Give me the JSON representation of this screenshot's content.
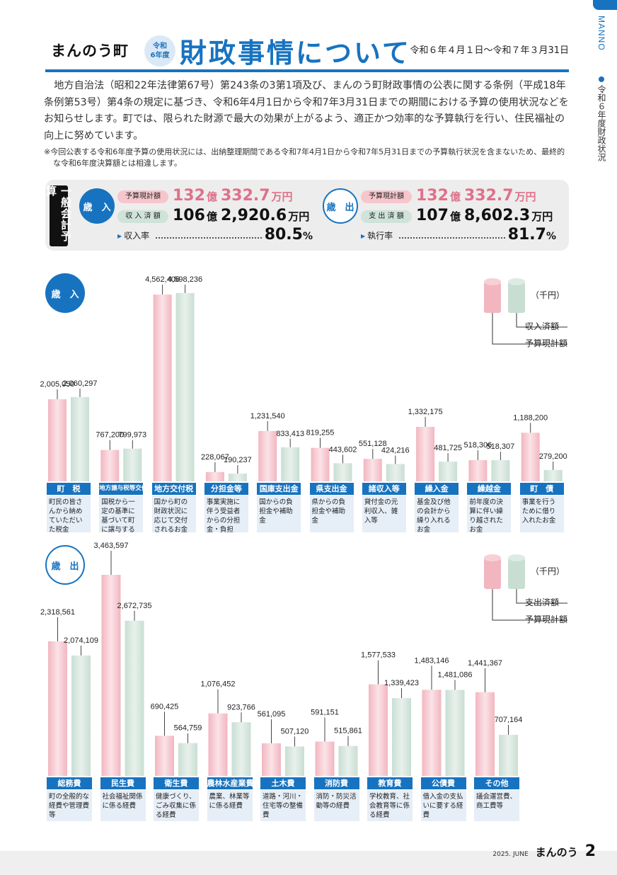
{
  "side_tab": {
    "brand": "MANNO",
    "section": "令和６年度財政状況"
  },
  "header": {
    "town": "まんのう町",
    "era_line1": "令和",
    "era_line2": "6年度",
    "title": "財政事情について",
    "period": "令和６年４月１日〜令和７年３月31日"
  },
  "intro": {
    "paragraph": "地方自治法（昭和22年法律第67号）第243条の3第1項及び、まんのう町財政事情の公表に関する条例（平成18年条例第53号）第4条の規定に基づき、令和6年4月1日から令和7年3月31日までの期間における予算の使用状況などをお知らせします。町では、限られた財源で最大の効果が上がるよう、適正かつ効率的な予算執行を行い、住民福祉の向上に努めています。",
    "note": "※今回公表する令和6年度予算の使用状況には、出納整理期間である令和7年4月1日から令和7年5月31日までの予算執行状況を含まないため、最終的な令和6年度決算額とは相違します。"
  },
  "summary": {
    "label": "一般会計予算",
    "revenue": {
      "label": "歳　入",
      "budget_label": "予算現計額",
      "budget_oku": "132",
      "budget_rest": "332.7",
      "actual_label": "収 入 済 額",
      "actual_oku": "106",
      "actual_rest": "2,920.6",
      "rate_label": "収入率",
      "rate_value": "80.5"
    },
    "expenditure": {
      "label": "歳　出",
      "budget_label": "予算現計額",
      "budget_oku": "132",
      "budget_rest": "332.7",
      "actual_label": "支 出 済 額",
      "actual_oku": "107",
      "actual_rest": "8,602.3",
      "rate_label": "執行率",
      "rate_value": "81.7"
    },
    "unit_oku": "億",
    "unit_man": "万円",
    "unit_pct": "%"
  },
  "revenue_chart": {
    "section_label": "歳　入",
    "legend_unit": "（千円）",
    "legend_green": "収入済額",
    "legend_pink": "予算現計額",
    "categories": [
      {
        "name": "町　税",
        "desc": "町民の皆さんから納めていただいた税金"
      },
      {
        "name": "地方譲与税等交付金",
        "desc": "国税から一定の基準に基づいて町に譲与するお金等"
      },
      {
        "name": "地方交付税",
        "desc": "国から町の財政状況に応じて交付されるお金"
      },
      {
        "name": "分担金等",
        "desc": "事業実施に伴う受益者からの分担金・負担金・使用料等"
      },
      {
        "name": "国庫支出金",
        "desc": "国からの負担金や補助金"
      },
      {
        "name": "県支出金",
        "desc": "県からの負担金や補助金"
      },
      {
        "name": "諸収入等",
        "desc": "貸付金の元利収入、雑入等"
      },
      {
        "name": "繰入金",
        "desc": "基金及び他の会計から繰り入れるお金"
      },
      {
        "name": "繰越金",
        "desc": "前年度の決算に伴い繰り越されたお金"
      },
      {
        "name": "町　債",
        "desc": "事業を行うために借り入れたお金"
      }
    ]
  },
  "expenditure_chart": {
    "section_label": "歳　出",
    "legend_unit": "（千円）",
    "legend_green": "支出済額",
    "legend_pink": "予算現計額",
    "categories": [
      {
        "name": "総務費",
        "desc": "町の全般的な経費や管理費等"
      },
      {
        "name": "民生費",
        "desc": "社会福祉関係に係る経費"
      },
      {
        "name": "衛生費",
        "desc": "健康づくり、ごみ収集に係る経費"
      },
      {
        "name": "農林水産業費",
        "desc": "農業、林業等に係る経費"
      },
      {
        "name": "土木費",
        "desc": "道路・河川・住宅等の整備費"
      },
      {
        "name": "消防費",
        "desc": "消防・防災活動等の経費"
      },
      {
        "name": "教育費",
        "desc": "学校教育、社会教育等に係る経費"
      },
      {
        "name": "公債費",
        "desc": "借入金の支払いに要する経費"
      },
      {
        "name": "その他",
        "desc": "議会運営費、商工費等"
      }
    ]
  },
  "chart_data": [
    {
      "type": "bar",
      "categories": [
        "町　税",
        "地方譲与税等交付金",
        "地方交付税",
        "分担金等",
        "国庫支出金",
        "県支出金",
        "諸収入等",
        "繰入金",
        "繰越金",
        "町　債"
      ],
      "series": [
        {
          "name": "予算現計額",
          "color": "#f2b6c0",
          "values": [
            2005050,
            767200,
            4562406,
            228067,
            1231540,
            819255,
            551128,
            1332175,
            518306,
            1188200
          ],
          "labels": [
            "2,005,050",
            "767,200",
            "4,562,406",
            "228,067",
            "1,231,540",
            "819,255",
            "551,128",
            "1,332,175",
            "518,306",
            "1,188,200"
          ]
        },
        {
          "name": "収入済額",
          "color": "#c9ded3",
          "values": [
            2060297,
            799973,
            4598236,
            190237,
            833413,
            443602,
            424216,
            481725,
            518307,
            279200
          ],
          "labels": [
            "2,060,297",
            "799,973",
            "4,598,236",
            "190,237",
            "833,413",
            "443,602",
            "424,216",
            "481,725",
            "518,307",
            "279,200"
          ]
        }
      ],
      "title": "歳　入",
      "ylabel": "（千円）"
    },
    {
      "type": "bar",
      "categories": [
        "総務費",
        "民生費",
        "衛生費",
        "農林水産業費",
        "土木費",
        "消防費",
        "教育費",
        "公債費",
        "その他"
      ],
      "series": [
        {
          "name": "予算現計額",
          "color": "#f2b6c0",
          "values": [
            2318561,
            3463597,
            690425,
            1076452,
            561095,
            591151,
            1577533,
            1483146,
            1441367
          ],
          "labels": [
            "2,318,561",
            "3,463,597",
            "690,425",
            "1,076,452",
            "561,095",
            "591,151",
            "1,577,533",
            "1,483,146",
            "1,441,367"
          ]
        },
        {
          "name": "支出済額",
          "color": "#c9ded3",
          "values": [
            2074109,
            2672735,
            564759,
            923766,
            507120,
            515861,
            1339423,
            1481086,
            707164
          ],
          "labels": [
            "2,074,109",
            "2,672,735",
            "564,759",
            "923,766",
            "507,120",
            "515,861",
            "1,339,423",
            "1,481,086",
            "707,164"
          ]
        }
      ],
      "title": "歳　出",
      "ylabel": "（千円）"
    }
  ],
  "footer": {
    "issue": "2025. JUNE",
    "logo": "まんのう",
    "page": "2"
  }
}
